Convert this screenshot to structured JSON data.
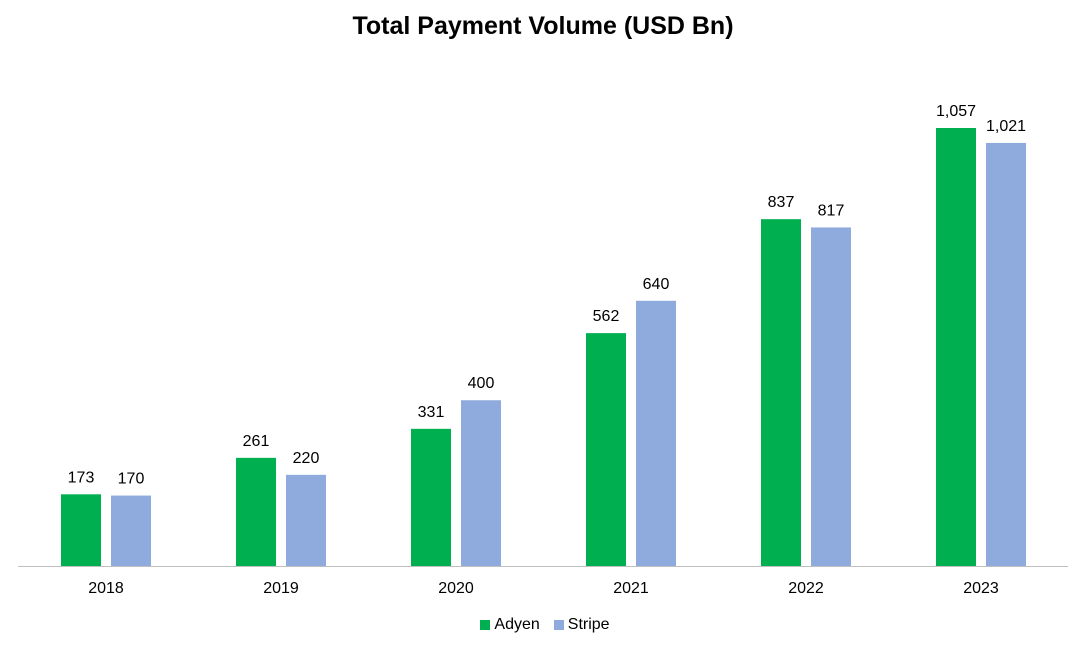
{
  "chart_data": {
    "type": "bar",
    "title": "Total Payment Volume (USD Bn)",
    "categories": [
      "2018",
      "2019",
      "2020",
      "2021",
      "2022",
      "2023"
    ],
    "series": [
      {
        "name": "Adyen",
        "color": "#00B050",
        "values": [
          173,
          261,
          331,
          562,
          837,
          1057
        ],
        "labels": [
          "173",
          "261",
          "331",
          "562",
          "837",
          "1,057"
        ]
      },
      {
        "name": "Stripe",
        "color": "#8FAADC",
        "values": [
          170,
          220,
          400,
          640,
          817,
          1021
        ],
        "labels": [
          "170",
          "220",
          "400",
          "640",
          "817",
          "1,021"
        ]
      }
    ],
    "xlabel": "",
    "ylabel": "",
    "ylim": [
      0,
      1057
    ],
    "grid": false,
    "legend": "bottom-center",
    "data_labels": true
  }
}
